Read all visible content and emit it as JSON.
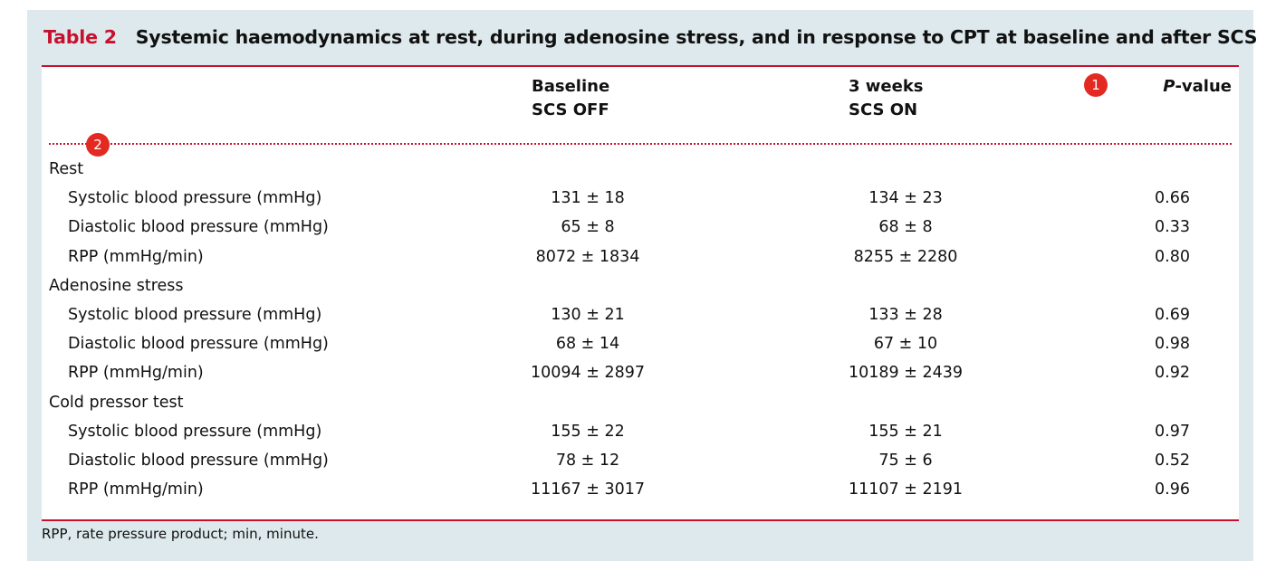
{
  "title": {
    "label": "Table 2",
    "text": "Systemic haemodynamics at rest, during adenosine stress, and in response to CPT at baseline and after SCS"
  },
  "columns": {
    "col1": [
      "Baseline",
      "SCS OFF"
    ],
    "col2": [
      "3 weeks",
      "SCS ON"
    ],
    "pvalue_italic": "P",
    "pvalue_rest": "-value"
  },
  "rows": [
    {
      "label": "Rest",
      "group": true
    },
    {
      "label": "Systolic blood pressure (mmHg)",
      "v1": "131 ± 18",
      "v2": "134 ± 23",
      "p": "0.66"
    },
    {
      "label": "Diastolic blood pressure (mmHg)",
      "v1": "65 ± 8",
      "v2": "68 ± 8",
      "p": "0.33"
    },
    {
      "label": "RPP (mmHg/min)",
      "v1": "8072 ± 1834",
      "v2": "8255 ± 2280",
      "p": "0.80"
    },
    {
      "label": "Adenosine stress",
      "group": true
    },
    {
      "label": "Systolic blood pressure (mmHg)",
      "v1": "130 ± 21",
      "v2": "133 ± 28",
      "p": "0.69"
    },
    {
      "label": "Diastolic blood pressure (mmHg)",
      "v1": "68 ± 14",
      "v2": "67 ± 10",
      "p": "0.98"
    },
    {
      "label": "RPP (mmHg/min)",
      "v1": "10094 ± 2897",
      "v2": "10189 ± 2439",
      "p": "0.92"
    },
    {
      "label": "Cold pressor test",
      "group": true
    },
    {
      "label": "Systolic blood pressure (mmHg)",
      "v1": "155 ± 22",
      "v2": "155 ± 21",
      "p": "0.97"
    },
    {
      "label": "Diastolic blood pressure (mmHg)",
      "v1": "78 ± 12",
      "v2": "75 ± 6",
      "p": "0.52"
    },
    {
      "label": "RPP (mmHg/min)",
      "v1": "11167 ± 3017",
      "v2": "11107 ± 2191",
      "p": "0.96"
    }
  ],
  "footnote": "RPP, rate pressure product; min, minute.",
  "badges": [
    "1",
    "2"
  ],
  "colors": {
    "accent": "#c8102e",
    "panel_bg": "#dde9ec",
    "badge": "#e32a22"
  }
}
